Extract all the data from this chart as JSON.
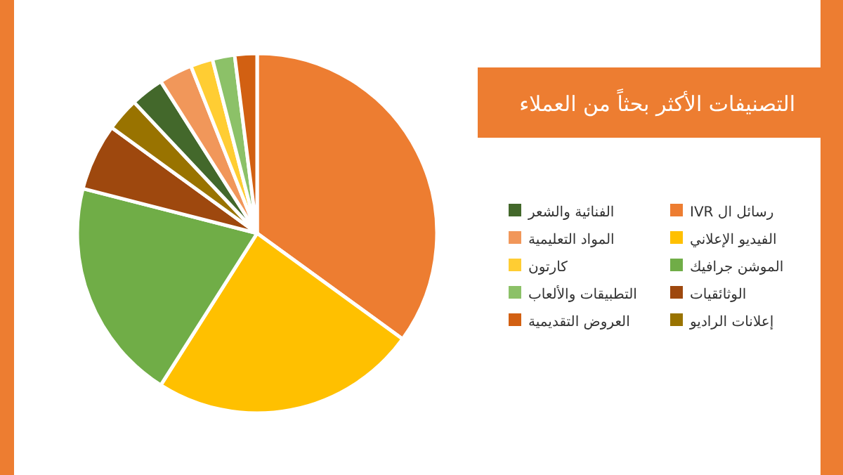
{
  "chart_data": {
    "type": "pie",
    "title": "التصنيفات الأكثر بحثاً من العملاء",
    "categories": [
      "رسائل ال IVR",
      "الفيديو الإعلاني",
      "الموشن جرافيك",
      "الوثائقيات",
      "إعلانات الراديو",
      "الفنائية والشعر",
      "المواد التعليمية",
      "كارتون",
      "التطبيقات والألعاب",
      "العروض التقديمية"
    ],
    "values": [
      35,
      24,
      20,
      6,
      3,
      3,
      3,
      2,
      2,
      2
    ],
    "colors": [
      "#ed7d31",
      "#ffc000",
      "#70ad47",
      "#9e480e",
      "#997300",
      "#43682b",
      "#f1975a",
      "#ffcd33",
      "#8cc168",
      "#d26012"
    ],
    "legend": "right"
  }
}
